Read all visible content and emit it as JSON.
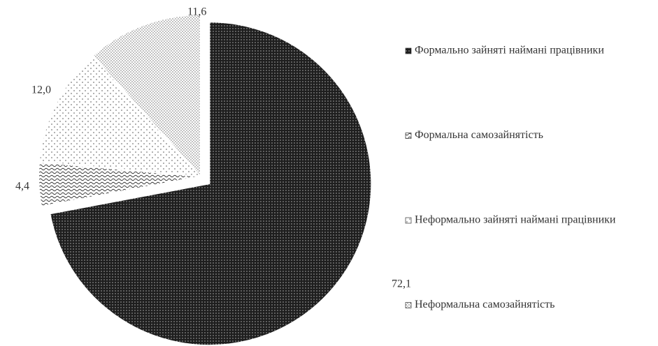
{
  "chart_data": {
    "type": "pie",
    "categories": [
      "Формально зайняті наймані працівники",
      "Формальна самозайнятість",
      "Неформально зайняті наймані працівники",
      "Неформальна самозайнятість"
    ],
    "values": [
      72.1,
      4.4,
      12.0,
      11.6
    ],
    "value_labels": [
      "72,1",
      "4,4",
      "12,0",
      "11,6"
    ],
    "colors": [
      "#1e1e1e",
      "#3a3a3a",
      "#6a6a6a",
      "#505050"
    ],
    "legend": "right"
  }
}
